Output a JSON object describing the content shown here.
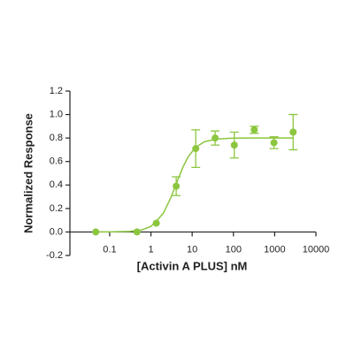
{
  "chart_data": {
    "type": "scatter",
    "x_label": "[Activin A PLUS] nM",
    "y_label": "Normalized Response",
    "x_scale": "log",
    "xlim": [
      0.012,
      10000
    ],
    "xticks": [
      0.1,
      1,
      10,
      100,
      1000,
      10000
    ],
    "ylim": [
      -0.2,
      1.2
    ],
    "yticks": [
      1.2,
      {
        "value": 1,
        "label": "1.0"
      },
      0.8,
      0.6,
      0.4,
      0.2,
      {
        "value": 0,
        "label": "0.0"
      },
      -0.2
    ],
    "color": "#8cc63f",
    "series": [
      {
        "x": [
          0.046,
          0.46,
          1.35,
          4.1,
          12.2,
          36,
          105,
          320,
          960,
          2800
        ],
        "values": [
          0,
          0,
          0.075,
          0.39,
          0.71,
          0.8,
          0.74,
          0.87,
          0.76,
          0.85
        ],
        "errors": [
          0,
          0,
          0,
          0.08,
          0.16,
          0.06,
          0.11,
          0.03,
          0.05,
          0.15
        ]
      }
    ],
    "fit": {
      "x": [
        0.046,
        0.1,
        0.3,
        0.6,
        1,
        1.5,
        2,
        3,
        4,
        6,
        8,
        12,
        20,
        40,
        100,
        300,
        1000,
        2800
      ],
      "values": [
        0,
        0.0005,
        0.0045,
        0.0176,
        0.047,
        0.11,
        0.16,
        0.288,
        0.4,
        0.554,
        0.64,
        0.72,
        0.769,
        0.792,
        0.799,
        0.8,
        0.8,
        0.8
      ]
    }
  }
}
